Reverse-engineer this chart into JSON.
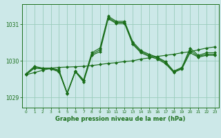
{
  "xlabel": "Graphe pression niveau de la mer (hPa)",
  "xlim": [
    -0.5,
    23.5
  ],
  "ylim": [
    1028.72,
    1031.55
  ],
  "yticks": [
    1029,
    1030,
    1031
  ],
  "xticks": [
    0,
    1,
    2,
    3,
    4,
    5,
    6,
    7,
    8,
    9,
    10,
    11,
    12,
    13,
    14,
    15,
    16,
    17,
    18,
    19,
    20,
    21,
    22,
    23
  ],
  "bg_color": "#cce8e8",
  "grid_color": "#99ccbb",
  "line_color": "#1a6e1a",
  "series_main": [
    1029.65,
    1029.85,
    1029.8,
    1029.8,
    1029.75,
    1029.12,
    1029.72,
    1029.48,
    1030.22,
    1030.35,
    1031.22,
    1031.08,
    1031.08,
    1030.52,
    1030.28,
    1030.18,
    1030.1,
    1029.98,
    1029.72,
    1029.82,
    1030.35,
    1030.15,
    1030.22,
    1030.22
  ],
  "series2": [
    1029.65,
    1029.82,
    1029.8,
    1029.8,
    1029.72,
    1029.12,
    1029.72,
    1029.45,
    1030.18,
    1030.3,
    1031.18,
    1031.05,
    1031.05,
    1030.48,
    1030.25,
    1030.15,
    1030.08,
    1029.95,
    1029.7,
    1029.8,
    1030.28,
    1030.12,
    1030.18,
    1030.18
  ],
  "series3": [
    1029.62,
    1029.8,
    1029.78,
    1029.78,
    1029.7,
    1029.1,
    1029.7,
    1029.42,
    1030.15,
    1030.25,
    1031.15,
    1031.02,
    1031.02,
    1030.45,
    1030.22,
    1030.12,
    1030.05,
    1029.92,
    1029.68,
    1029.78,
    1030.22,
    1030.1,
    1030.15,
    1030.15
  ],
  "series_trend": [
    1029.62,
    1029.68,
    1029.74,
    1029.8,
    1029.82,
    1029.83,
    1029.84,
    1029.85,
    1029.87,
    1029.9,
    1029.93,
    1029.95,
    1029.98,
    1030.0,
    1030.05,
    1030.08,
    1030.12,
    1030.15,
    1030.18,
    1030.22,
    1030.25,
    1030.3,
    1030.35,
    1030.38
  ]
}
